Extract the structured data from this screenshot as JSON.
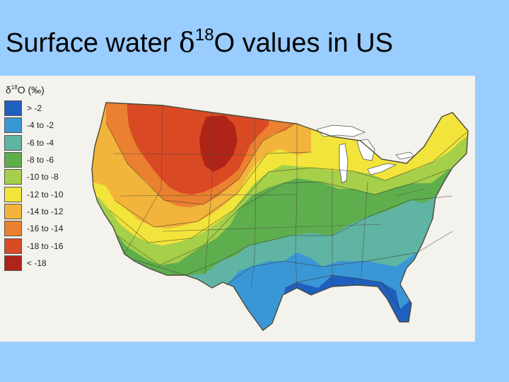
{
  "slide": {
    "title_prefix": "Surface water ",
    "title_symbol": "δ",
    "title_superscript": "18",
    "title_suffix": "O values in US"
  },
  "legend": {
    "title_symbol": "δ",
    "title_superscript": "18",
    "title_rest": "O (‰)",
    "items": [
      {
        "label": "> -2",
        "color": "#1f5fbf"
      },
      {
        "label": "-4 to -2",
        "color": "#3a97d6"
      },
      {
        "label": "-6 to -4",
        "color": "#5fb4a4"
      },
      {
        "label": "-8 to -6",
        "color": "#5eae4e"
      },
      {
        "label": "-10 to -8",
        "color": "#a6cf4a"
      },
      {
        "label": "-12 to -10",
        "color": "#f2e43a"
      },
      {
        "label": "-14 to -12",
        "color": "#f2b43a"
      },
      {
        "label": "-16 to -14",
        "color": "#ea8030"
      },
      {
        "label": "-18 to -16",
        "color": "#d94a24"
      },
      {
        "label": "< -18",
        "color": "#b02418"
      }
    ]
  },
  "colors": {
    "slide_background": "#99ccff",
    "figure_background": "#f4f2ec",
    "contour_line": "#4a4a3a",
    "great_lakes": "#ffffff"
  }
}
